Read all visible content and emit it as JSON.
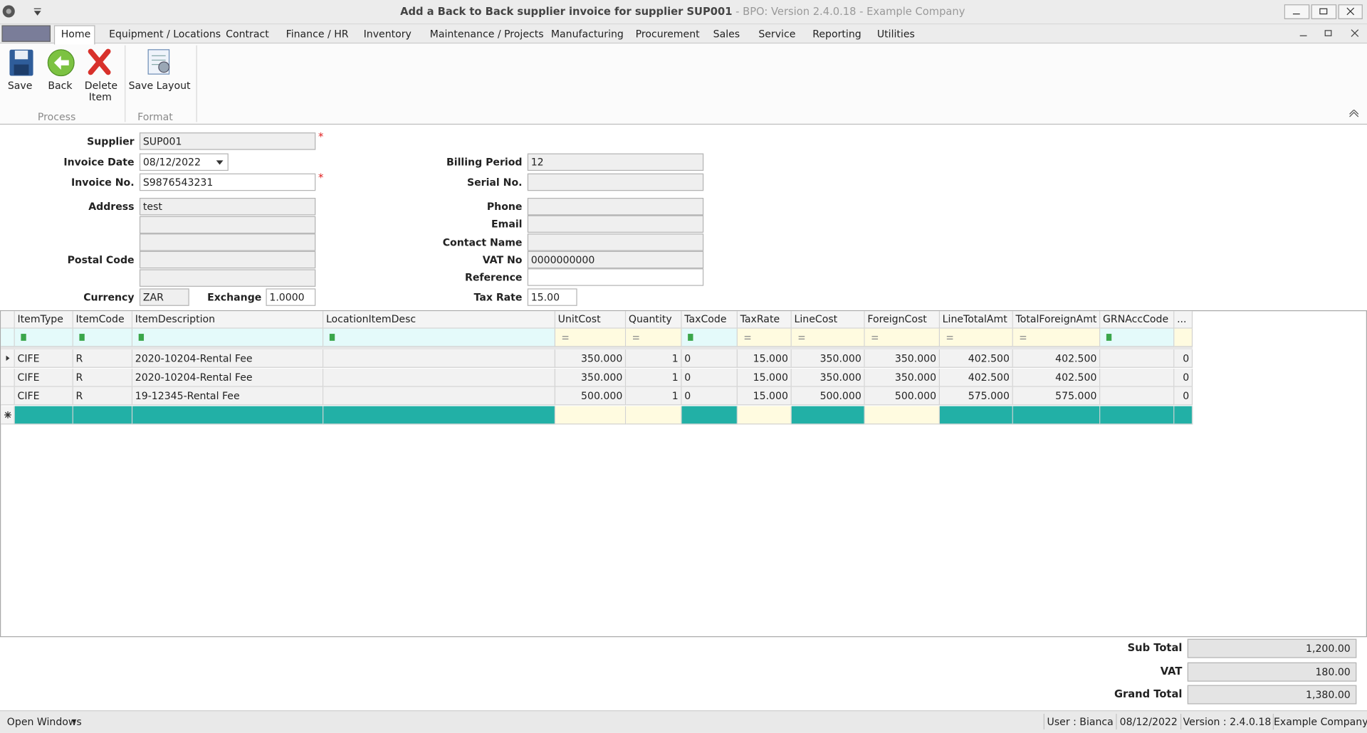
{
  "window": {
    "title": "Add a Back to Back supplier invoice for supplier SUP001",
    "subtitle": "BPO: Version 2.4.0.18 - Example Company"
  },
  "menu": [
    "Home",
    "Equipment / Locations",
    "Contract",
    "Finance / HR",
    "Inventory",
    "Maintenance / Projects",
    "Manufacturing",
    "Procurement",
    "Sales",
    "Service",
    "Reporting",
    "Utilities"
  ],
  "ribbon": {
    "groups": [
      {
        "label": "Process",
        "buttons": [
          "Save",
          "Back",
          "Delete Item"
        ]
      },
      {
        "label": "Format",
        "buttons": [
          "Save Layout"
        ]
      }
    ]
  },
  "form": {
    "fields": [
      {
        "label": "Supplier",
        "value": "SUP001"
      },
      {
        "label": "Invoice Date",
        "value": "08/12/2022"
      },
      {
        "label": "Invoice No.",
        "value": "S9876543231"
      },
      {
        "label": "Address",
        "value": "test"
      },
      {
        "label": "Postal Code"
      },
      {
        "label": "Currency",
        "value": "ZAR"
      },
      {
        "label": "Exchange",
        "value": "1.0000"
      },
      {
        "label": "Billing Period",
        "value": "12"
      },
      {
        "label": "Serial No."
      },
      {
        "label": "Phone"
      },
      {
        "label": "Email"
      },
      {
        "label": "Contact Name"
      },
      {
        "label": "VAT No",
        "value": "0000000000"
      },
      {
        "label": "Reference"
      },
      {
        "label": "Tax Rate",
        "value": "15.00"
      }
    ],
    "required_mark": "*"
  },
  "table": {
    "columns": [
      "ItemType",
      "ItemCode",
      "ItemDescription",
      "LocationItemDesc",
      "UnitCost",
      "Quantity",
      "TaxCode",
      "TaxRate",
      "LineCost",
      "ForeignCost",
      "LineTotalAmt",
      "TotalForeignAmt",
      "GRNAccCode",
      "..."
    ],
    "rows": [
      [
        "CIFE",
        "R",
        "2020-10204-Rental Fee",
        null,
        "350.000",
        "1",
        "0",
        "15.000",
        "350.000",
        "350.000",
        "402.500",
        "402.500",
        null,
        "0"
      ],
      [
        "CIFE",
        "R",
        "2020-10204-Rental Fee",
        null,
        "350.000",
        "1",
        "0",
        "15.000",
        "350.000",
        "350.000",
        "402.500",
        "402.500",
        null,
        "0"
      ],
      [
        "CIFE",
        "R",
        "19-12345-Rental Fee",
        null,
        "500.000",
        "1",
        "0",
        "15.000",
        "500.000",
        "500.000",
        "575.000",
        "575.000",
        null,
        "0"
      ]
    ]
  },
  "totals": [
    {
      "label": "Sub Total",
      "value": "1,200.00"
    },
    {
      "label": "VAT",
      "value": "180.00"
    },
    {
      "label": "Grand Total",
      "value": "1,380.00"
    }
  ],
  "status": {
    "left": "Open Windows",
    "items": [
      "User : Bianca",
      "08/12/2022",
      "Version : 2.4.0.18",
      "Example Company"
    ]
  }
}
